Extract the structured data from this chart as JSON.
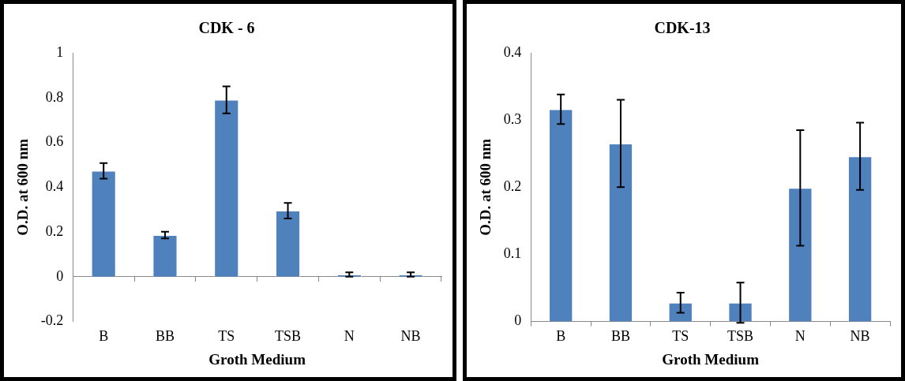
{
  "chart_data": [
    {
      "type": "bar",
      "title": "CDK - 6",
      "xlabel": "Groth Medium",
      "ylabel": "O.D. at 600 nm",
      "categories": [
        "B",
        "BB",
        "TS",
        "TSB",
        "N",
        "NB"
      ],
      "values": [
        0.473,
        0.186,
        0.79,
        0.295,
        0.01,
        0.01
      ],
      "errors": [
        0.035,
        0.015,
        0.06,
        0.035,
        0.01,
        0.01
      ],
      "color": "#4f81bd",
      "ylim": [
        -0.2,
        1
      ],
      "yticks": [
        -0.2,
        0,
        0.2,
        0.4,
        0.6,
        0.8,
        1
      ]
    },
    {
      "type": "bar",
      "title": "CDK-13",
      "xlabel": "Groth Medium",
      "ylabel": "O.D. at 600 nm",
      "categories": [
        "B",
        "BB",
        "TS",
        "TSB",
        "N",
        "NB"
      ],
      "values": [
        0.316,
        0.265,
        0.028,
        0.028,
        0.199,
        0.246
      ],
      "errors": [
        0.022,
        0.065,
        0.015,
        0.03,
        0.086,
        0.05
      ],
      "color": "#4f81bd",
      "ylim": [
        0,
        0.4
      ],
      "yticks": [
        0,
        0.1,
        0.2,
        0.3,
        0.4
      ]
    }
  ]
}
